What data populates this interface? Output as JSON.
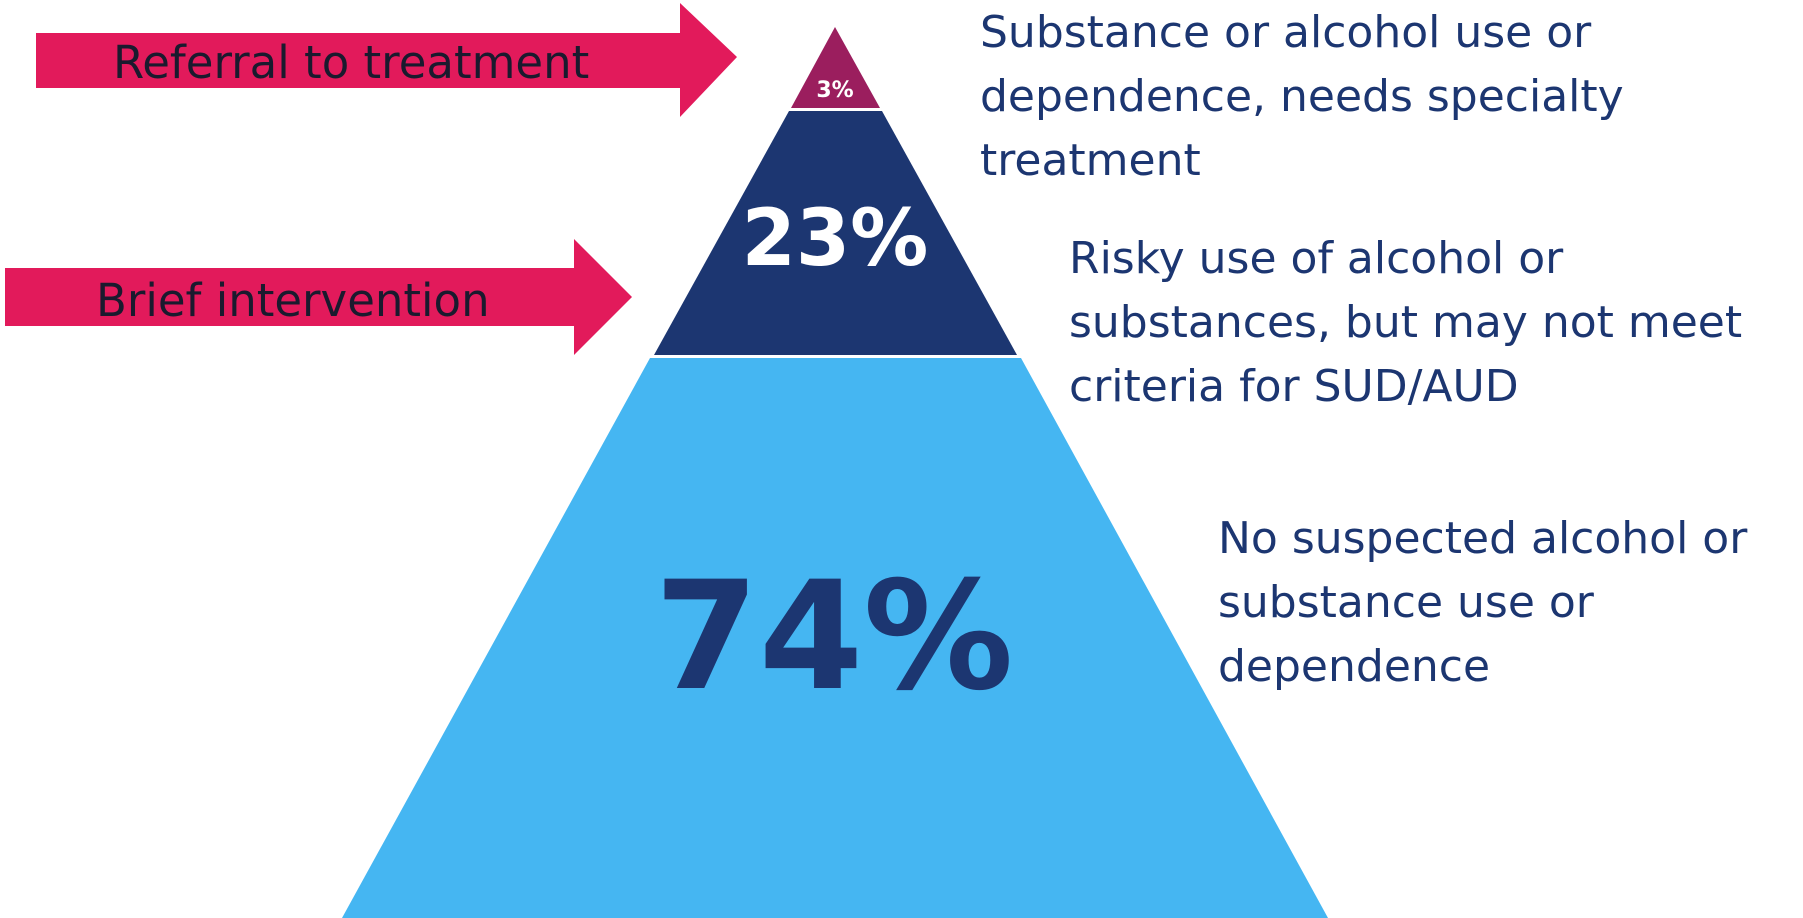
{
  "colors": {
    "arrow": "#e21a5b",
    "tier_top": "#9b1e5e",
    "tier_middle": "#1c3671",
    "tier_bottom": "#45b6f2",
    "text_dark": "#1c3671"
  },
  "arrows": {
    "referral_label": "Referral to treatment",
    "brief_label": "Brief intervention"
  },
  "tiers": {
    "top": {
      "percent": "3%",
      "description": [
        "Substance or alcohol use or",
        "dependence, needs specialty",
        "treatment"
      ]
    },
    "middle": {
      "percent": "23%",
      "description": [
        "Risky use of alcohol or",
        "substances, but may not meet",
        "criteria for SUD/AUD"
      ]
    },
    "bottom": {
      "percent": "74%",
      "description": [
        "No suspected alcohol or",
        "substance use or",
        "dependence"
      ]
    }
  }
}
